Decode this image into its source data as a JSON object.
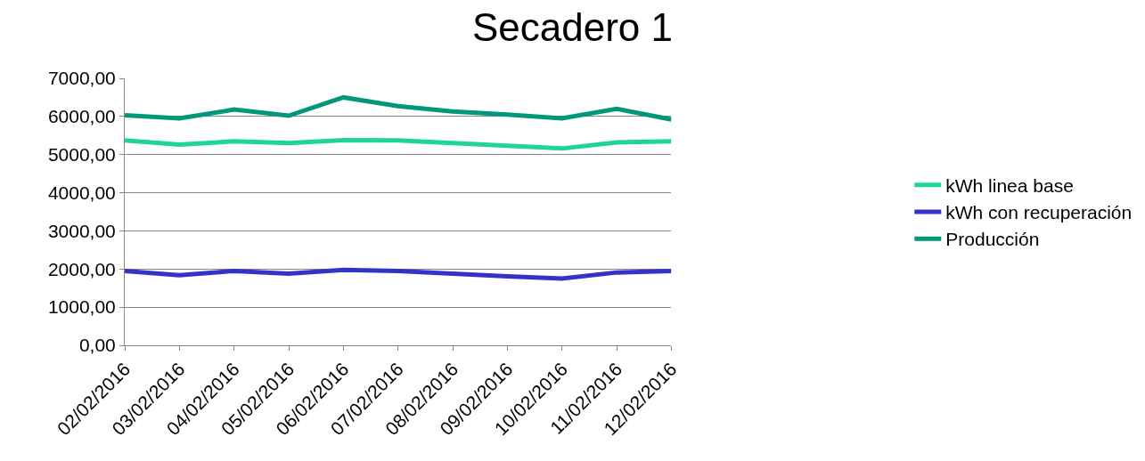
{
  "chart_data": {
    "type": "line",
    "title": "Secadero 1",
    "categories": [
      "02/02/2016",
      "03/02/2016",
      "04/02/2016",
      "05/02/2016",
      "06/02/2016",
      "07/02/2016",
      "08/02/2016",
      "09/02/2016",
      "10/02/2016",
      "11/02/2016",
      "12/02/2016"
    ],
    "series": [
      {
        "name": "kWh linea base",
        "color": "#1fd39c",
        "values": [
          5370,
          5260,
          5350,
          5300,
          5380,
          5370,
          5300,
          5230,
          5160,
          5320,
          5350
        ]
      },
      {
        "name": "kWh con recuperación",
        "color": "#3333cc",
        "values": [
          1950,
          1840,
          1950,
          1880,
          1980,
          1950,
          1880,
          1810,
          1750,
          1910,
          1950
        ]
      },
      {
        "name": "Producción",
        "color": "#00977a",
        "values": [
          6030,
          5950,
          6180,
          6020,
          6500,
          6270,
          6130,
          6050,
          5950,
          6200,
          5920
        ]
      }
    ],
    "ylim": [
      0,
      7000
    ],
    "yticks": [
      {
        "value": 0,
        "label": "0,00"
      },
      {
        "value": 1000,
        "label": "1000,00"
      },
      {
        "value": 2000,
        "label": "2000,00"
      },
      {
        "value": 3000,
        "label": "3000,00"
      },
      {
        "value": 4000,
        "label": "4000,00"
      },
      {
        "value": 5000,
        "label": "5000,00"
      },
      {
        "value": 6000,
        "label": "6000,00"
      },
      {
        "value": 7000,
        "label": "7000,00"
      }
    ],
    "grid": "y",
    "legend": "right",
    "marker": "none",
    "line_style": "solid"
  }
}
